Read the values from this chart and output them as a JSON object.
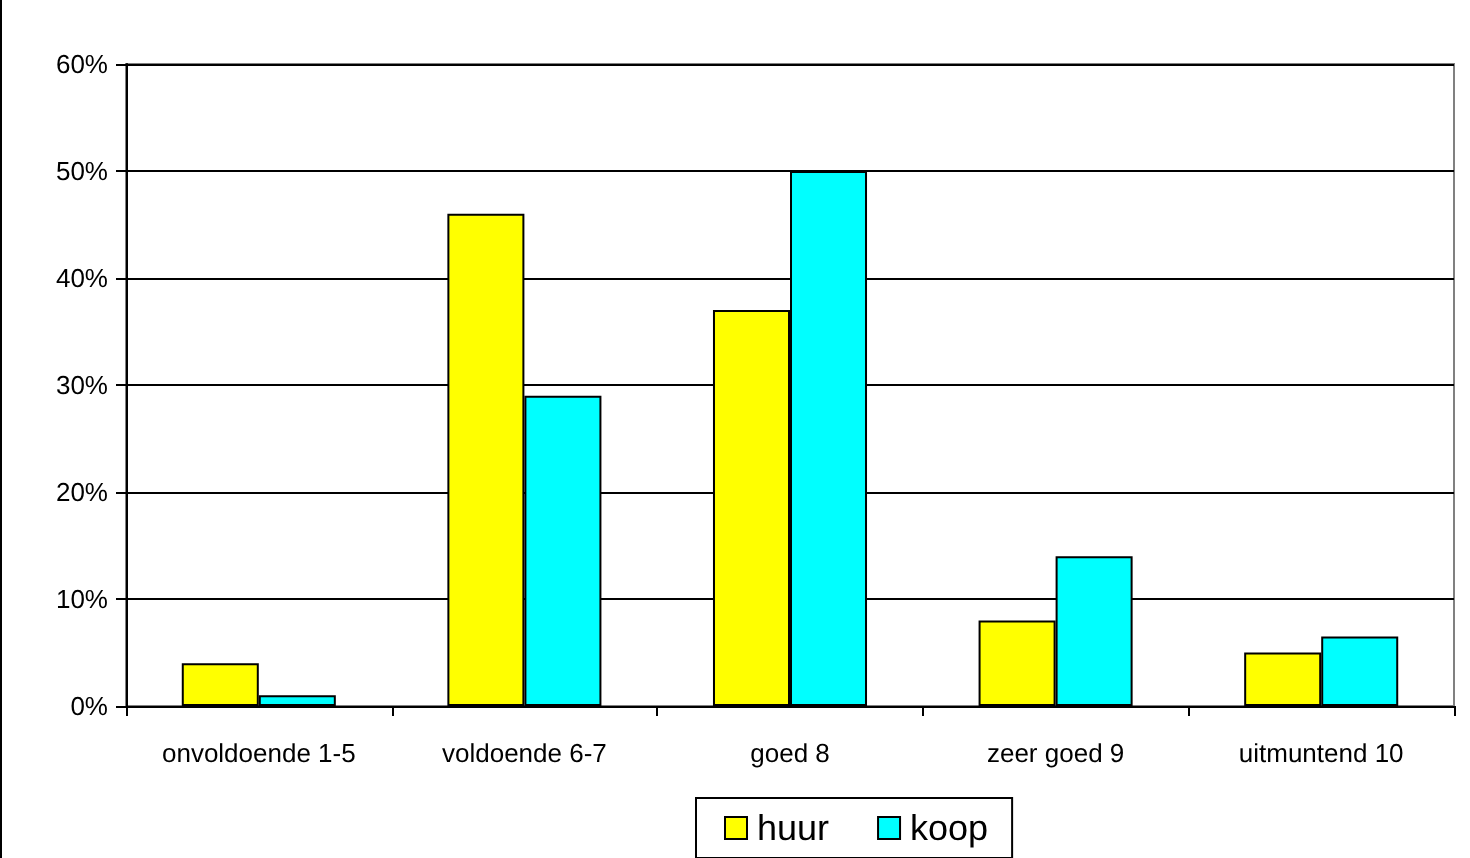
{
  "chart_data": {
    "type": "bar",
    "categories": [
      "onvoldoende 1-5",
      "voldoende 6-7",
      "goed 8",
      "zeer goed 9",
      "uitmuntend 10"
    ],
    "series": [
      {
        "name": "huur",
        "color": "#ffff00",
        "values": [
          4,
          46,
          37,
          8,
          5
        ]
      },
      {
        "name": "koop",
        "color": "#00ffff",
        "values": [
          1,
          29,
          50,
          14,
          6.5
        ]
      }
    ],
    "ylim": [
      0,
      60
    ],
    "yticks": [
      {
        "value": 0,
        "label": "0%"
      },
      {
        "value": 10,
        "label": "10%"
      },
      {
        "value": 20,
        "label": "20%"
      },
      {
        "value": 30,
        "label": "30%"
      },
      {
        "value": 40,
        "label": "40%"
      },
      {
        "value": 50,
        "label": "50%"
      },
      {
        "value": 60,
        "label": "60%"
      }
    ],
    "grid": "y",
    "legend": "bottom"
  }
}
